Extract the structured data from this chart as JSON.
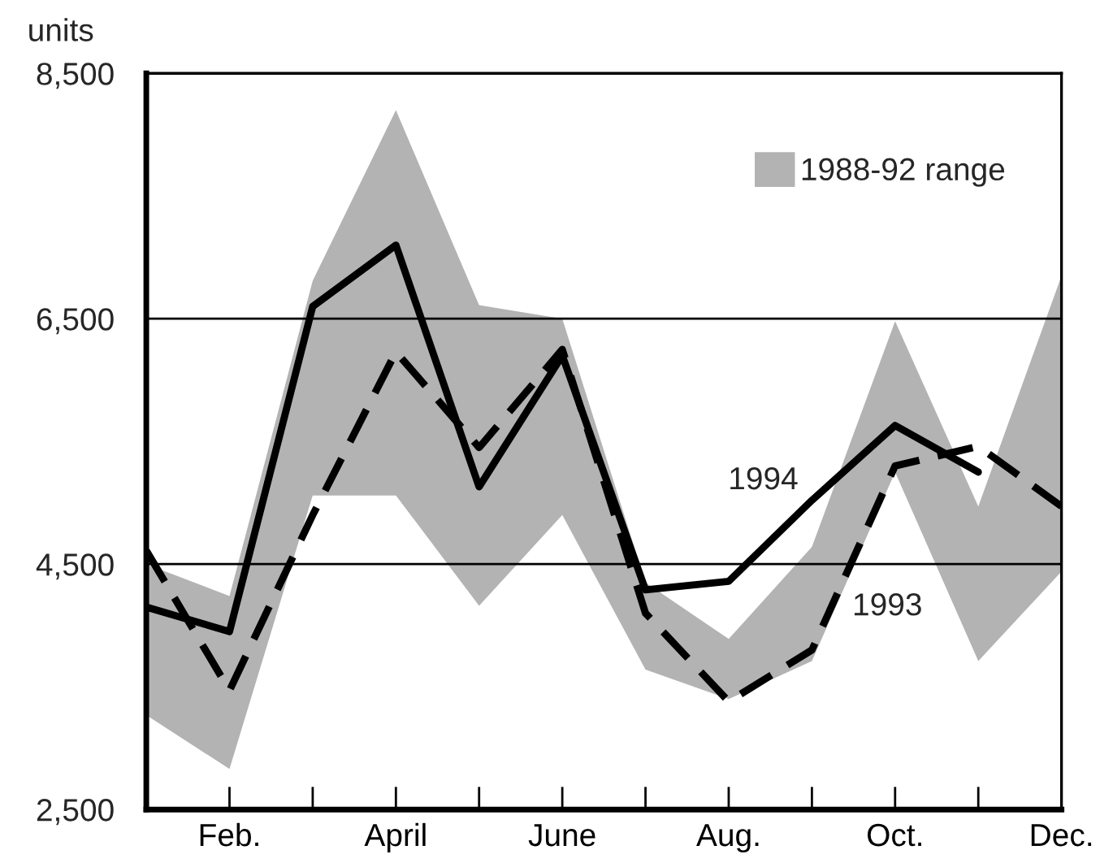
{
  "chart_data": {
    "type": "line",
    "ylabel": "units",
    "categories": [
      null,
      "Feb.",
      null,
      "April",
      null,
      "June",
      null,
      "Aug.",
      null,
      "Oct.",
      null,
      "Dec."
    ],
    "series": [
      {
        "name": "1988-92 range",
        "type": "area",
        "color": "#b3b3b3",
        "values": [
          null,
          null,
          null,
          null,
          null,
          null,
          null,
          null,
          null,
          null,
          null,
          null
        ],
        "lower": [
          3270,
          2830,
          5060,
          5060,
          4160,
          4900,
          3640,
          3400,
          3710,
          5250,
          3710,
          4440
        ],
        "upper": [
          4500,
          4240,
          6810,
          8200,
          6610,
          6500,
          4350,
          3890,
          4640,
          6480,
          4970,
          6850
        ]
      },
      {
        "name": "1994",
        "color": "#000000",
        "line_style": "solid",
        "values": [
          4150,
          3950,
          6600,
          7100,
          5130,
          6200,
          4290,
          4360,
          5020,
          5630,
          5250,
          null
        ]
      },
      {
        "name": "1993",
        "color": "#000000",
        "line_style": "dashed",
        "values": [
          4610,
          3470,
          4900,
          6230,
          5450,
          6250,
          4100,
          3380,
          3800,
          5300,
          5460,
          4970
        ]
      }
    ],
    "ylim": [
      2500,
      8500
    ],
    "yticks": [
      {
        "value": 2500,
        "label": "2,500"
      },
      {
        "value": 4500,
        "label": "4,500"
      },
      {
        "value": 6500,
        "label": "6,500"
      },
      {
        "value": 8500,
        "label": "8,500"
      }
    ],
    "grid": "y",
    "legend": "top right"
  }
}
